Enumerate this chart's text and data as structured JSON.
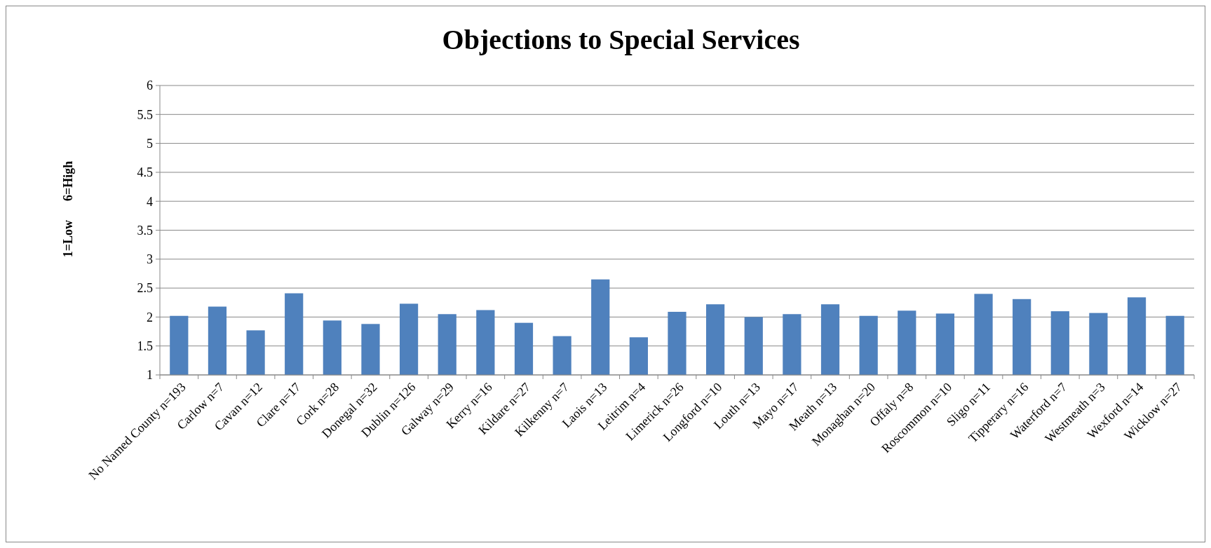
{
  "chart_data": {
    "type": "bar",
    "title": "Objections to Special Services",
    "ylabel": "1=Low      6=High",
    "categories": [
      "No Named County n=193",
      "Carlow n=7",
      "Cavan n=12",
      "Clare n=17",
      "Cork n=28",
      "Donegal n=32",
      "Dublin n=126",
      "Galway n=29",
      "Kerry n=16",
      "Kildare n=27",
      "Kilkenny n=7",
      "Laois n=13",
      "Leitrim n=4",
      "Limerick n=26",
      "Longford n=10",
      "Louth n=13",
      "Mayo n=17",
      "Meath n=13",
      "Monaghan n=20",
      "Offaly n=8",
      "Roscommon n=10",
      "Sligo n=11",
      "Tipperary n=16",
      "Waterford n=7",
      "Westmeath n=3",
      "Wexford n=14",
      "Wicklow n=27"
    ],
    "values": [
      2.02,
      2.18,
      1.77,
      2.41,
      1.94,
      1.88,
      2.23,
      2.05,
      2.12,
      1.9,
      1.67,
      2.65,
      1.65,
      2.09,
      2.22,
      2.0,
      2.05,
      2.22,
      2.02,
      2.11,
      2.06,
      2.4,
      2.31,
      2.1,
      2.07,
      2.34,
      2.02
    ],
    "color": "#4f81bd",
    "ylim": [
      1,
      6
    ],
    "yticks": [
      1,
      1.5,
      2,
      2.5,
      3,
      3.5,
      4,
      4.5,
      5,
      5.5,
      6
    ],
    "grid": "y"
  }
}
